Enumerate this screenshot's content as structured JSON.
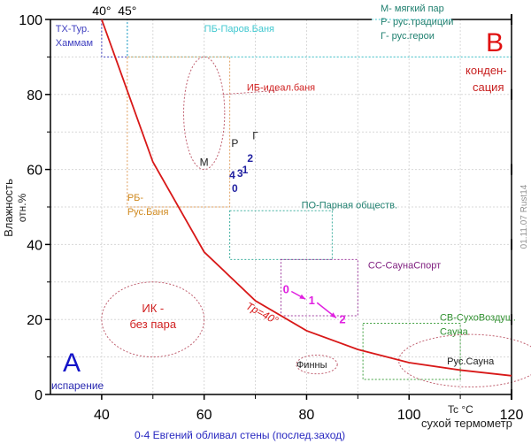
{
  "chart_data": {
    "type": "line",
    "title": "",
    "xlabel": "0-4 Евгений обливал стены (послед.заход)",
    "xlabel_unit": "Tc °C",
    "xlabel_sub": "сухой термометр",
    "ylabel_line1": "Влажность",
    "ylabel_line2": "отн.%",
    "xlim": [
      30,
      120
    ],
    "ylim": [
      0,
      100
    ],
    "xticks": [
      40,
      60,
      80,
      100,
      120
    ],
    "xticks_minor": [
      50,
      70,
      90,
      110
    ],
    "yticks": [
      0,
      20,
      40,
      60,
      80,
      100
    ],
    "yticks_minor": [
      10,
      30,
      50,
      70,
      90
    ],
    "grid": true,
    "top_ticks": [
      {
        "x": 40,
        "label": "40°"
      },
      {
        "x": 45,
        "label": "45°"
      }
    ],
    "series": [
      {
        "name": "Tp=40°",
        "color": "#d81818",
        "x": [
          40,
          50,
          60,
          70,
          80,
          90,
          100,
          110,
          120
        ],
        "y": [
          100,
          62,
          38,
          25,
          17,
          12,
          8.5,
          6.5,
          5
        ]
      }
    ],
    "curve_label": {
      "text": "Tp=40°",
      "x": 68,
      "y": 23,
      "color": "#d81818"
    },
    "regions": [
      {
        "id": "tx",
        "label_lines": [
          "ТХ-Тур.",
          "Хаммам"
        ],
        "shape": "rect",
        "x": [
          40,
          45
        ],
        "y": [
          90,
          100
        ],
        "color": "#4040c0",
        "label_at": [
          31,
          99
        ]
      },
      {
        "id": "pb",
        "label_lines": [
          "ПБ-Паров.Баня"
        ],
        "shape": "rect",
        "x": [
          45,
          120
        ],
        "y": [
          90,
          100
        ],
        "color": "#40c8d0",
        "label_at": [
          60,
          99
        ]
      },
      {
        "id": "rb",
        "label_lines": [
          "РБ-",
          "Рус.Баня"
        ],
        "shape": "rect",
        "x": [
          45,
          65
        ],
        "y": [
          50,
          90
        ],
        "color": "#e0a060",
        "label_at": [
          45,
          54
        ],
        "label_color": "#d08a20"
      },
      {
        "id": "ib",
        "label_lines": [
          "ИБ-идеал.баня"
        ],
        "shape": "ellipse",
        "cx": 60,
        "cy": 75,
        "rx": 4,
        "ry": 15,
        "color": "#c06070",
        "label_at": [
          75,
          82
        ],
        "label_color": "#d02020"
      },
      {
        "id": "po",
        "label_lines": [
          "ПО-Парная обществ."
        ],
        "shape": "rect",
        "x": [
          65,
          85
        ],
        "y": [
          36,
          49
        ],
        "color": "#40b0a0",
        "label_at": [
          79,
          52
        ],
        "label_color": "#208070"
      },
      {
        "id": "ss",
        "label_lines": [
          "СС-СаунаСпорт"
        ],
        "shape": "rect",
        "x": [
          75,
          90
        ],
        "y": [
          21,
          36
        ],
        "color": "#a040a0",
        "label_at": [
          92,
          36
        ],
        "label_color": "#802080"
      },
      {
        "id": "sv",
        "label_lines": [
          "СВ-СухоВоздуш.",
          "Сауна"
        ],
        "shape": "rect",
        "x": [
          91,
          110
        ],
        "y": [
          4,
          19
        ],
        "color": "#40a040",
        "label_at": [
          106,
          22
        ],
        "label_color": "#309030"
      },
      {
        "id": "ik",
        "label_lines": [
          "ИК -",
          "без пара"
        ],
        "shape": "ellipse",
        "cx": 50,
        "cy": 20,
        "rx": 10,
        "ry": 10,
        "color": "#c06070",
        "label_at": [
          50,
          20
        ],
        "label_color": "#d02020"
      },
      {
        "id": "finns",
        "label_lines": [
          "Финны"
        ],
        "shape": "ellipse",
        "cx": 82,
        "cy": 8,
        "rx": 4,
        "ry": 2.5,
        "color": "#c06070",
        "label_at": [
          81,
          8
        ],
        "label_color": "#202020"
      },
      {
        "id": "rus_sauna",
        "label_lines": [
          "Рус.Сауна"
        ],
        "shape": "ellipse",
        "cx": 112,
        "cy": 9,
        "rx": 14,
        "ry": 7,
        "color": "#c06070",
        "label_at": [
          112,
          9
        ],
        "label_color": "#202020"
      }
    ],
    "legend_note": [
      "М- мягкий пар",
      "Р- рус.традиции",
      "Г- рус.герои"
    ],
    "point_markers": [
      {
        "label": "М",
        "x": 60,
        "y": 61,
        "color": "#202020"
      },
      {
        "label": "Р",
        "x": 66,
        "y": 66,
        "color": "#202020"
      },
      {
        "label": "Г",
        "x": 70,
        "y": 68,
        "color": "#202020"
      }
    ],
    "numbered_points_blue": [
      {
        "label": "0",
        "x": 66,
        "y": 54
      },
      {
        "label": "1",
        "x": 68,
        "y": 59
      },
      {
        "label": "2",
        "x": 69,
        "y": 62
      },
      {
        "label": "3",
        "x": 67,
        "y": 58
      },
      {
        "label": "4",
        "x": 65.5,
        "y": 57.5
      }
    ],
    "numbered_points_magenta": [
      {
        "label": "0",
        "x": 76,
        "y": 27
      },
      {
        "label": "1",
        "x": 81,
        "y": 24
      },
      {
        "label": "2",
        "x": 87,
        "y": 19
      }
    ],
    "corner_labels": {
      "A": {
        "text": "А",
        "color": "#1414c8"
      },
      "A_sub": {
        "text": "испарение",
        "color": "#2828b0"
      },
      "B": {
        "text": "В",
        "color": "#e01010"
      },
      "B_sub_1": "конден-",
      "B_sub_2": "сация",
      "B_sub_color": "#c82020"
    },
    "watermark": "01.11.07 Rust14"
  }
}
